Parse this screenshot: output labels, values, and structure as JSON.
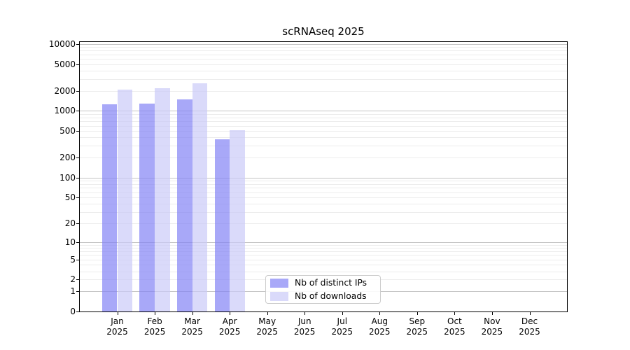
{
  "title": "scRNAseq 2025",
  "chart_data": {
    "type": "bar",
    "scale": "log1p",
    "title": "scRNAseq 2025",
    "xlabel": "",
    "ylabel": "",
    "categories": [
      "Jan",
      "Feb",
      "Mar",
      "Apr",
      "May",
      "Jun",
      "Jul",
      "Aug",
      "Sep",
      "Oct",
      "Nov",
      "Dec"
    ],
    "category_year": "2025",
    "series": [
      {
        "name": "Nb of distinct IPs",
        "color": "#8383f5",
        "alpha": 0.7,
        "values": [
          1250,
          1290,
          1490,
          375,
          null,
          null,
          null,
          null,
          null,
          null,
          null,
          null
        ]
      },
      {
        "name": "Nb of downloads",
        "color": "#cacaf8",
        "alpha": 0.7,
        "values": [
          2080,
          2170,
          2600,
          520,
          null,
          null,
          null,
          null,
          null,
          null,
          null,
          null
        ]
      }
    ],
    "yticks": [
      0,
      1,
      2,
      5,
      10,
      20,
      50,
      100,
      200,
      500,
      1000,
      2000,
      5000,
      10000
    ],
    "ylim": [
      0,
      10740
    ],
    "grid": true,
    "legend_position": "lower center"
  },
  "colors": {
    "major_grid": "#c3c3c3",
    "minor_grid": "#ececec",
    "axis": "#000000",
    "background": "#ffffff"
  }
}
